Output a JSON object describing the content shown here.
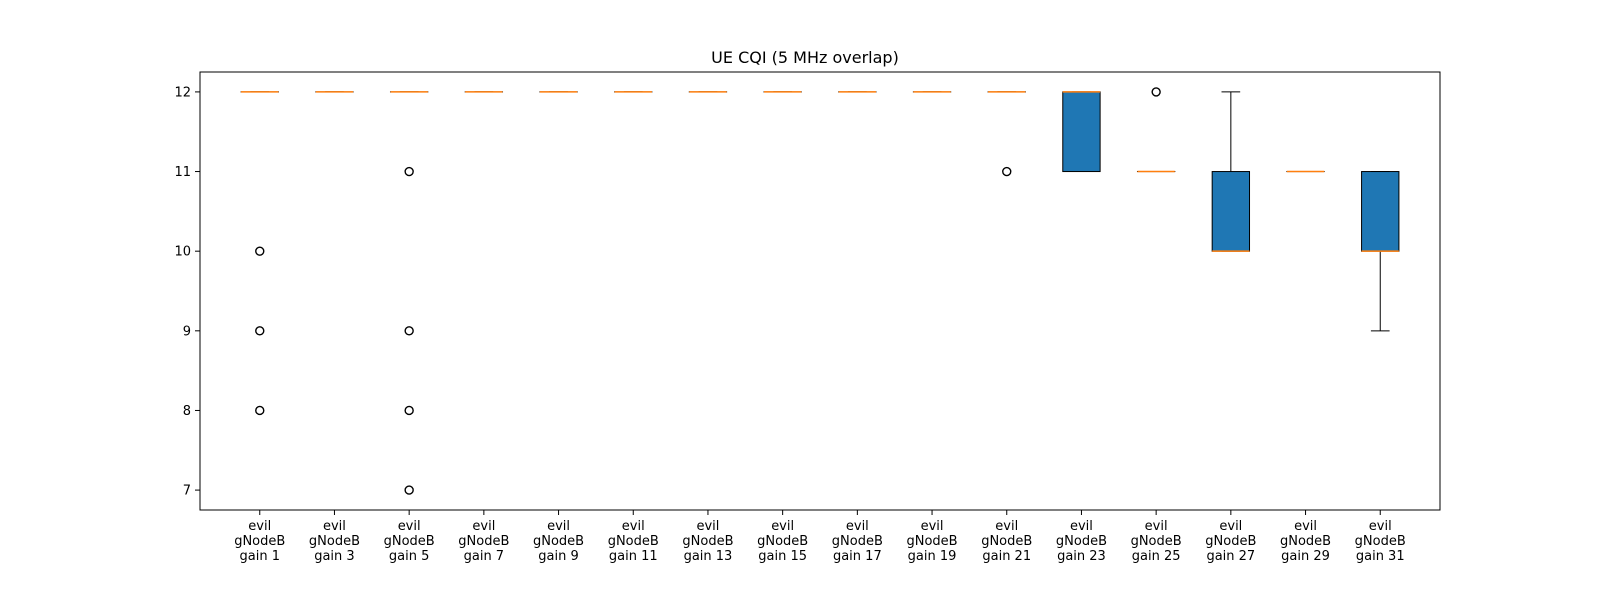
{
  "chart_data": {
    "type": "box",
    "title": "UE CQI (5 MHz overlap)",
    "xlabel": "",
    "ylabel": "",
    "ylim": [
      6.75,
      12.25
    ],
    "yticks": [
      7,
      8,
      9,
      10,
      11,
      12
    ],
    "grid": false,
    "colors": {
      "box_fill": "#1f77b4",
      "median": "#ff7f0e",
      "edge": "#000000"
    },
    "categories": [
      [
        "evil",
        "gNodeB",
        "gain 1"
      ],
      [
        "evil",
        "gNodeB",
        "gain 3"
      ],
      [
        "evil",
        "gNodeB",
        "gain 5"
      ],
      [
        "evil",
        "gNodeB",
        "gain 7"
      ],
      [
        "evil",
        "gNodeB",
        "gain 9"
      ],
      [
        "evil",
        "gNodeB",
        "gain 11"
      ],
      [
        "evil",
        "gNodeB",
        "gain 13"
      ],
      [
        "evil",
        "gNodeB",
        "gain 15"
      ],
      [
        "evil",
        "gNodeB",
        "gain 17"
      ],
      [
        "evil",
        "gNodeB",
        "gain 19"
      ],
      [
        "evil",
        "gNodeB",
        "gain 21"
      ],
      [
        "evil",
        "gNodeB",
        "gain 23"
      ],
      [
        "evil",
        "gNodeB",
        "gain 25"
      ],
      [
        "evil",
        "gNodeB",
        "gain 27"
      ],
      [
        "evil",
        "gNodeB",
        "gain 29"
      ],
      [
        "evil",
        "gNodeB",
        "gain 31"
      ]
    ],
    "boxes": [
      {
        "q1": 12,
        "median": 12,
        "q3": 12,
        "whislo": 12,
        "whishi": 12,
        "fliers": [
          10,
          9,
          8
        ]
      },
      {
        "q1": 12,
        "median": 12,
        "q3": 12,
        "whislo": 12,
        "whishi": 12,
        "fliers": []
      },
      {
        "q1": 12,
        "median": 12,
        "q3": 12,
        "whislo": 12,
        "whishi": 12,
        "fliers": [
          11,
          9,
          8,
          7
        ]
      },
      {
        "q1": 12,
        "median": 12,
        "q3": 12,
        "whislo": 12,
        "whishi": 12,
        "fliers": []
      },
      {
        "q1": 12,
        "median": 12,
        "q3": 12,
        "whislo": 12,
        "whishi": 12,
        "fliers": []
      },
      {
        "q1": 12,
        "median": 12,
        "q3": 12,
        "whislo": 12,
        "whishi": 12,
        "fliers": []
      },
      {
        "q1": 12,
        "median": 12,
        "q3": 12,
        "whislo": 12,
        "whishi": 12,
        "fliers": []
      },
      {
        "q1": 12,
        "median": 12,
        "q3": 12,
        "whislo": 12,
        "whishi": 12,
        "fliers": []
      },
      {
        "q1": 12,
        "median": 12,
        "q3": 12,
        "whislo": 12,
        "whishi": 12,
        "fliers": []
      },
      {
        "q1": 12,
        "median": 12,
        "q3": 12,
        "whislo": 12,
        "whishi": 12,
        "fliers": []
      },
      {
        "q1": 12,
        "median": 12,
        "q3": 12,
        "whislo": 12,
        "whishi": 12,
        "fliers": [
          11
        ]
      },
      {
        "q1": 11,
        "median": 12,
        "q3": 12,
        "whislo": 11,
        "whishi": 12,
        "fliers": []
      },
      {
        "q1": 11,
        "median": 11,
        "q3": 11,
        "whislo": 11,
        "whishi": 11,
        "fliers": [
          12
        ]
      },
      {
        "q1": 10,
        "median": 10,
        "q3": 11,
        "whislo": 10,
        "whishi": 12,
        "fliers": []
      },
      {
        "q1": 11,
        "median": 11,
        "q3": 11,
        "whislo": 11,
        "whishi": 11,
        "fliers": []
      },
      {
        "q1": 10,
        "median": 10,
        "q3": 11,
        "whislo": 9,
        "whishi": 11,
        "fliers": []
      }
    ]
  }
}
